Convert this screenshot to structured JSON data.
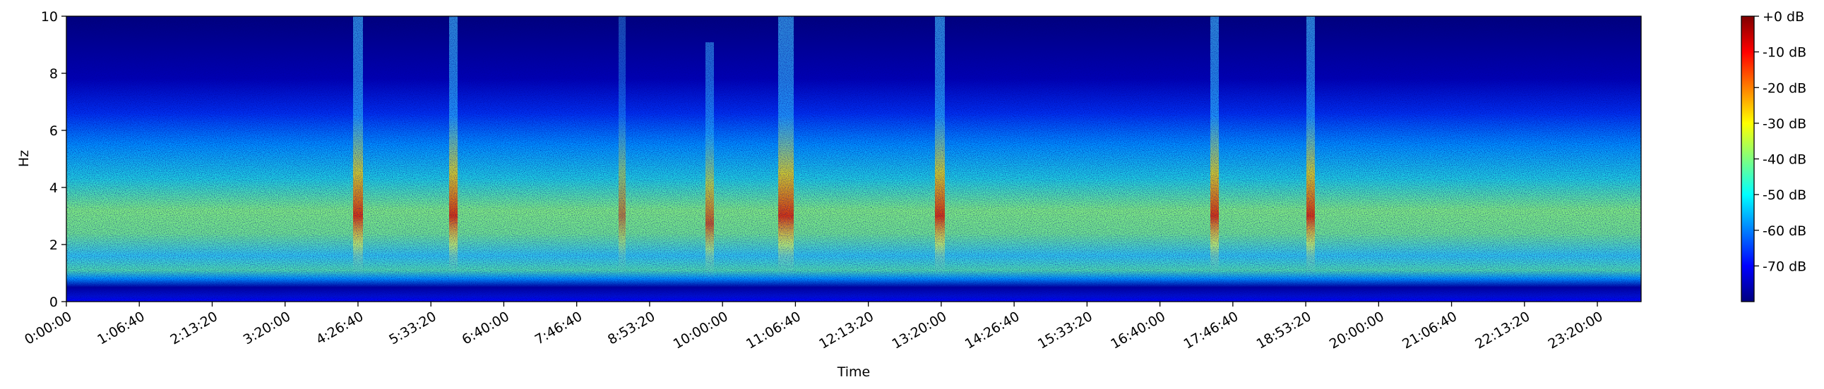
{
  "chart_data": {
    "type": "spectrogram",
    "xlabel": "Time",
    "ylabel": "Hz",
    "cmap": "jet",
    "xlim": [
      0,
      86400
    ],
    "xticks": [
      {
        "value": 0,
        "label": "0:00:00"
      },
      {
        "value": 4000,
        "label": "1:06:40"
      },
      {
        "value": 8000,
        "label": "2:13:20"
      },
      {
        "value": 12000,
        "label": "3:20:00"
      },
      {
        "value": 16000,
        "label": "4:26:40"
      },
      {
        "value": 20000,
        "label": "5:33:20"
      },
      {
        "value": 24000,
        "label": "6:40:00"
      },
      {
        "value": 28000,
        "label": "7:46:40"
      },
      {
        "value": 32000,
        "label": "8:53:20"
      },
      {
        "value": 36000,
        "label": "10:00:00"
      },
      {
        "value": 40000,
        "label": "11:06:40"
      },
      {
        "value": 44000,
        "label": "12:13:20"
      },
      {
        "value": 48000,
        "label": "13:20:00"
      },
      {
        "value": 52000,
        "label": "14:26:40"
      },
      {
        "value": 56000,
        "label": "15:33:20"
      },
      {
        "value": 60000,
        "label": "16:40:00"
      },
      {
        "value": 64000,
        "label": "17:46:40"
      },
      {
        "value": 68000,
        "label": "18:53:20"
      },
      {
        "value": 72000,
        "label": "20:00:00"
      },
      {
        "value": 76000,
        "label": "21:06:40"
      },
      {
        "value": 80000,
        "label": "22:13:20"
      },
      {
        "value": 84000,
        "label": "23:20:00"
      }
    ],
    "ylim": [
      0,
      10
    ],
    "yticks": [
      0,
      2,
      4,
      6,
      8,
      10
    ],
    "clim": [
      -80,
      0
    ],
    "cticks": [
      {
        "value": 0,
        "label": "+0 dB"
      },
      {
        "value": -10,
        "label": "-10 dB"
      },
      {
        "value": -20,
        "label": "-20 dB"
      },
      {
        "value": -30,
        "label": "-30 dB"
      },
      {
        "value": -40,
        "label": "-40 dB"
      },
      {
        "value": -50,
        "label": "-50 dB"
      },
      {
        "value": -60,
        "label": "-60 dB"
      },
      {
        "value": -70,
        "label": "-70 dB"
      }
    ]
  }
}
